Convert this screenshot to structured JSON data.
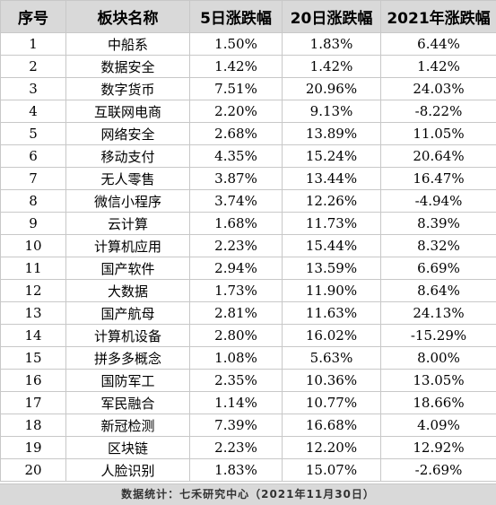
{
  "headers": [
    "序号",
    "板块名称",
    "5日涨跌幅",
    "20日涨跌幅",
    "2021年涨跌幅"
  ],
  "rows": [
    [
      "1",
      "中船系",
      "1.50%",
      "1.83%",
      "6.44%"
    ],
    [
      "2",
      "数据安全",
      "1.42%",
      "1.42%",
      "1.42%"
    ],
    [
      "3",
      "数字货币",
      "7.51%",
      "20.96%",
      "24.03%"
    ],
    [
      "4",
      "互联网电商",
      "2.20%",
      "9.13%",
      "-8.22%"
    ],
    [
      "5",
      "网络安全",
      "2.68%",
      "13.89%",
      "11.05%"
    ],
    [
      "6",
      "移动支付",
      "4.35%",
      "15.24%",
      "20.64%"
    ],
    [
      "7",
      "无人零售",
      "3.87%",
      "13.44%",
      "16.47%"
    ],
    [
      "8",
      "微信小程序",
      "3.74%",
      "12.26%",
      "-4.94%"
    ],
    [
      "9",
      "云计算",
      "1.68%",
      "11.73%",
      "8.39%"
    ],
    [
      "10",
      "计算机应用",
      "2.23%",
      "15.44%",
      "8.32%"
    ],
    [
      "11",
      "国产软件",
      "2.94%",
      "13.59%",
      "6.69%"
    ],
    [
      "12",
      "大数据",
      "1.73%",
      "11.90%",
      "8.64%"
    ],
    [
      "13",
      "国产航母",
      "2.81%",
      "11.63%",
      "24.13%"
    ],
    [
      "14",
      "计算机设备",
      "2.80%",
      "16.02%",
      "-15.29%"
    ],
    [
      "15",
      "拼多多概念",
      "1.08%",
      "5.63%",
      "8.00%"
    ],
    [
      "16",
      "国防军工",
      "2.35%",
      "10.36%",
      "13.05%"
    ],
    [
      "17",
      "军民融合",
      "1.14%",
      "10.77%",
      "18.66%"
    ],
    [
      "18",
      "新冠检测",
      "7.39%",
      "16.68%",
      "4.09%"
    ],
    [
      "19",
      "区块链",
      "2.23%",
      "12.20%",
      "12.92%"
    ],
    [
      "20",
      "人脸识别",
      "1.83%",
      "15.07%",
      "-2.69%"
    ]
  ],
  "footer": "数据统计：七禾研究中心（2021年11月30日）"
}
